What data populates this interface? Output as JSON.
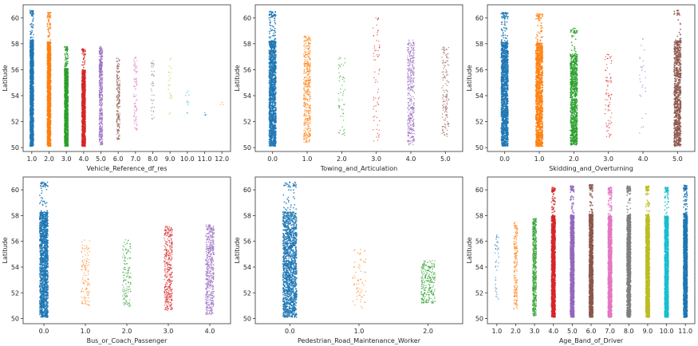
{
  "chart_data": [
    {
      "type": "scatter",
      "xlabel": "Vehicle_Reference_df_res",
      "ylabel": "Latitude",
      "categories": [
        "1.0",
        "2.0",
        "3.0",
        "4.0",
        "5.0",
        "6.0",
        "7.0",
        "8.0",
        "9.0",
        "10.0",
        "11.0",
        "12.0"
      ],
      "yticks": [
        50,
        52,
        54,
        56,
        58,
        60
      ],
      "ylim": [
        49.7,
        61
      ],
      "strips": [
        {
          "category": "1.0",
          "color": "#1f77b4",
          "density": 1.0,
          "ymin": 50.1,
          "ymax": 60.6
        },
        {
          "category": "2.0",
          "color": "#ff7f0e",
          "density": 1.0,
          "ymin": 50.1,
          "ymax": 60.4
        },
        {
          "category": "3.0",
          "color": "#2ca02c",
          "density": 0.9,
          "ymin": 50.1,
          "ymax": 57.8
        },
        {
          "category": "4.0",
          "color": "#d62728",
          "density": 0.75,
          "ymin": 50.1,
          "ymax": 57.6
        },
        {
          "category": "5.0",
          "color": "#9467bd",
          "density": 0.4,
          "ymin": 50.2,
          "ymax": 57.8
        },
        {
          "category": "6.0",
          "color": "#8c564b",
          "density": 0.15,
          "ymin": 50.6,
          "ymax": 57.0
        },
        {
          "category": "7.0",
          "color": "#e377c2",
          "density": 0.07,
          "ymin": 51.2,
          "ymax": 57.0
        },
        {
          "category": "8.0",
          "color": "#7f7f7f",
          "density": 0.03,
          "ymin": 52.2,
          "ymax": 57.0
        },
        {
          "category": "9.0",
          "color": "#bcbd22",
          "density": 0.015,
          "ymin": 52.5,
          "ymax": 57.0
        },
        {
          "category": "10.0",
          "color": "#17becf",
          "density": 0.008,
          "ymin": 52.3,
          "ymax": 54.5
        },
        {
          "category": "11.0",
          "color": "#1f77b4",
          "density": 0.003,
          "ymin": 52.4,
          "ymax": 53.5
        },
        {
          "category": "12.0",
          "color": "#ff7f0e",
          "density": 0.002,
          "ymin": 53.3,
          "ymax": 53.5
        }
      ]
    },
    {
      "type": "scatter",
      "xlabel": "Towing_and_Articulation",
      "ylabel": "Latitude",
      "categories": [
        "0.0",
        "1.0",
        "2.0",
        "3.0",
        "4.0",
        "5.0"
      ],
      "yticks": [
        50,
        52,
        54,
        56,
        58,
        60
      ],
      "ylim": [
        49.7,
        61
      ],
      "strips": [
        {
          "category": "0.0",
          "color": "#1f77b4",
          "density": 1.0,
          "ymin": 50.1,
          "ymax": 60.5
        },
        {
          "category": "1.0",
          "color": "#ff7f0e",
          "density": 0.35,
          "ymin": 50.4,
          "ymax": 58.6
        },
        {
          "category": "2.0",
          "color": "#2ca02c",
          "density": 0.04,
          "ymin": 50.8,
          "ymax": 57.0
        },
        {
          "category": "3.0",
          "color": "#d62728",
          "density": 0.05,
          "ymin": 50.5,
          "ymax": 60.1
        },
        {
          "category": "4.0",
          "color": "#9467bd",
          "density": 0.3,
          "ymin": 50.2,
          "ymax": 58.3
        },
        {
          "category": "5.0",
          "color": "#8c564b",
          "density": 0.1,
          "ymin": 50.8,
          "ymax": 58.0
        }
      ]
    },
    {
      "type": "scatter",
      "xlabel": "Skidding_and_Overturning",
      "ylabel": "Latitude",
      "categories": [
        "0.0",
        "1.0",
        "2.0",
        "3.0",
        "4.0",
        "5.0"
      ],
      "yticks": [
        50,
        52,
        54,
        56,
        58,
        60
      ],
      "ylim": [
        49.7,
        61
      ],
      "strips": [
        {
          "category": "0.0",
          "color": "#1f77b4",
          "density": 1.0,
          "ymin": 50.1,
          "ymax": 60.4
        },
        {
          "category": "1.0",
          "color": "#ff7f0e",
          "density": 0.85,
          "ymin": 50.1,
          "ymax": 60.3
        },
        {
          "category": "2.0",
          "color": "#2ca02c",
          "density": 0.6,
          "ymin": 50.2,
          "ymax": 59.2
        },
        {
          "category": "3.0",
          "color": "#d62728",
          "density": 0.06,
          "ymin": 50.8,
          "ymax": 57.5
        },
        {
          "category": "4.0",
          "color": "#9467bd",
          "density": 0.02,
          "ymin": 50.8,
          "ymax": 58.5
        },
        {
          "category": "5.0",
          "color": "#8c564b",
          "density": 0.6,
          "ymin": 50.1,
          "ymax": 60.6
        }
      ]
    },
    {
      "type": "scatter",
      "xlabel": "Bus_or_Coach_Passenger",
      "ylabel": "Latitude",
      "categories": [
        "0.0",
        "1.0",
        "2.0",
        "3.0",
        "4.0"
      ],
      "yticks": [
        50,
        52,
        54,
        56,
        58,
        60
      ],
      "ylim": [
        49.6,
        61
      ],
      "strips": [
        {
          "category": "0.0",
          "color": "#1f77b4",
          "density": 1.0,
          "ymin": 50.1,
          "ymax": 60.6
        },
        {
          "category": "1.0",
          "color": "#ff7f0e",
          "density": 0.08,
          "ymin": 51.0,
          "ymax": 56.1
        },
        {
          "category": "2.0",
          "color": "#2ca02c",
          "density": 0.1,
          "ymin": 50.8,
          "ymax": 56.2
        },
        {
          "category": "3.0",
          "color": "#d62728",
          "density": 0.3,
          "ymin": 50.6,
          "ymax": 57.2
        },
        {
          "category": "4.0",
          "color": "#9467bd",
          "density": 0.4,
          "ymin": 50.3,
          "ymax": 57.3
        }
      ]
    },
    {
      "type": "scatter",
      "xlabel": "Pedestrian_Road_Maintenance_Worker",
      "ylabel": "Latitude",
      "categories": [
        "0.0",
        "1.0",
        "2.0"
      ],
      "yticks": [
        50,
        52,
        54,
        56,
        58,
        60
      ],
      "ylim": [
        49.6,
        61
      ],
      "strips": [
        {
          "category": "0.0",
          "color": "#1f77b4",
          "density": 1.0,
          "ymin": 50.1,
          "ymax": 60.6
        },
        {
          "category": "1.0",
          "color": "#ff7f0e",
          "density": 0.05,
          "ymin": 50.8,
          "ymax": 55.4
        },
        {
          "category": "2.0",
          "color": "#2ca02c",
          "density": 0.2,
          "ymin": 51.2,
          "ymax": 54.5
        }
      ]
    },
    {
      "type": "scatter",
      "xlabel": "Age_Band_of_Driver",
      "ylabel": "Latitude",
      "categories": [
        "1.0",
        "2.0",
        "3.0",
        "4.0",
        "5.0",
        "6.0",
        "7.0",
        "8.0",
        "9.0",
        "10.0",
        "11.0"
      ],
      "yticks": [
        50,
        52,
        54,
        56,
        58,
        60
      ],
      "ylim": [
        49.6,
        61
      ],
      "strips": [
        {
          "category": "1.0",
          "color": "#1f77b4",
          "density": 0.03,
          "ymin": 51.5,
          "ymax": 56.5
        },
        {
          "category": "2.0",
          "color": "#ff7f0e",
          "density": 0.15,
          "ymin": 50.6,
          "ymax": 57.5
        },
        {
          "category": "3.0",
          "color": "#2ca02c",
          "density": 0.5,
          "ymin": 50.2,
          "ymax": 57.8
        },
        {
          "category": "4.0",
          "color": "#d62728",
          "density": 1.0,
          "ymin": 50.1,
          "ymax": 60.2
        },
        {
          "category": "5.0",
          "color": "#9467bd",
          "density": 1.0,
          "ymin": 50.1,
          "ymax": 60.3
        },
        {
          "category": "6.0",
          "color": "#8c564b",
          "density": 1.0,
          "ymin": 50.1,
          "ymax": 60.4
        },
        {
          "category": "7.0",
          "color": "#e377c2",
          "density": 1.0,
          "ymin": 50.1,
          "ymax": 60.2
        },
        {
          "category": "8.0",
          "color": "#7f7f7f",
          "density": 1.0,
          "ymin": 50.1,
          "ymax": 60.3
        },
        {
          "category": "9.0",
          "color": "#bcbd22",
          "density": 1.0,
          "ymin": 50.1,
          "ymax": 60.3
        },
        {
          "category": "10.0",
          "color": "#17becf",
          "density": 1.0,
          "ymin": 50.1,
          "ymax": 60.2
        },
        {
          "category": "11.0",
          "color": "#1f77b4",
          "density": 1.0,
          "ymin": 50.1,
          "ymax": 60.4
        }
      ]
    }
  ]
}
